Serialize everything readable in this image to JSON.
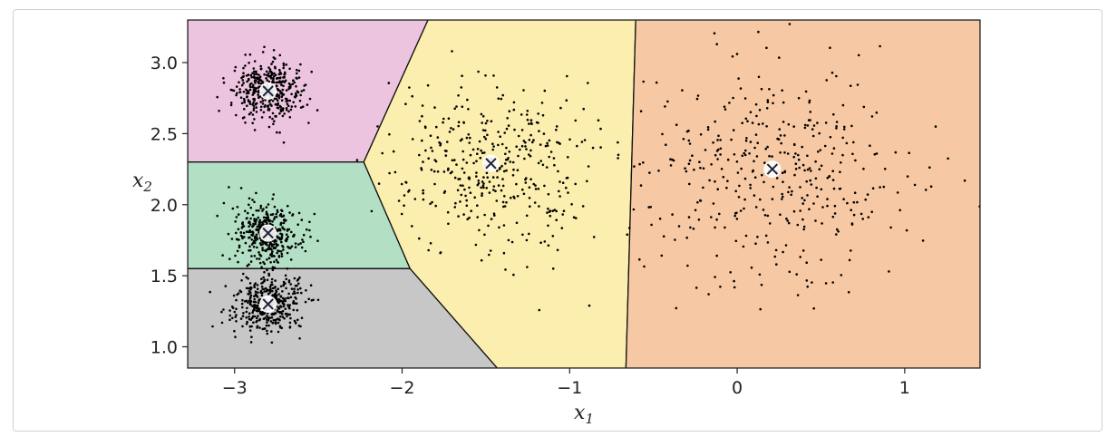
{
  "chart_data": {
    "type": "scatter",
    "title": "",
    "xlabel": "x",
    "xlabel_sub": "1",
    "ylabel": "x",
    "ylabel_sub": "2",
    "xlim": [
      -3.28,
      1.45
    ],
    "ylim": [
      0.85,
      3.3
    ],
    "grid": false,
    "legend": "none",
    "x_ticks": [
      -3,
      -2,
      -1,
      0,
      1
    ],
    "x_tick_labels": [
      "−3",
      "−2",
      "−1",
      "0",
      "1"
    ],
    "y_ticks": [
      1.0,
      1.5,
      2.0,
      2.5,
      3.0
    ],
    "y_tick_labels": [
      "1.0",
      "1.5",
      "2.0",
      "2.5",
      "3.0"
    ],
    "centroids": [
      {
        "x": -2.8,
        "y": 2.8
      },
      {
        "x": -2.8,
        "y": 1.8
      },
      {
        "x": -2.8,
        "y": 1.3
      },
      {
        "x": -1.47,
        "y": 2.29
      },
      {
        "x": 0.21,
        "y": 2.25
      }
    ],
    "clusters": [
      {
        "center_x": -2.8,
        "center_y": 2.8,
        "std_x": 0.1,
        "std_y": 0.1,
        "count": 400
      },
      {
        "center_x": -2.8,
        "center_y": 1.8,
        "std_x": 0.1,
        "std_y": 0.1,
        "count": 400
      },
      {
        "center_x": -2.8,
        "center_y": 1.3,
        "std_x": 0.1,
        "std_y": 0.1,
        "count": 400
      },
      {
        "center_x": -1.47,
        "center_y": 2.29,
        "std_x": 0.3,
        "std_y": 0.3,
        "count": 400
      },
      {
        "center_x": 0.21,
        "center_y": 2.25,
        "std_x": 0.4,
        "std_y": 0.4,
        "count": 400
      }
    ],
    "region_colors": [
      "#ecc4df",
      "#b3dfc5",
      "#c7c7c7",
      "#fbeeaf",
      "#f6c9a4"
    ],
    "point_color": "#000000",
    "centroid_marker_color": "#1f2238"
  }
}
